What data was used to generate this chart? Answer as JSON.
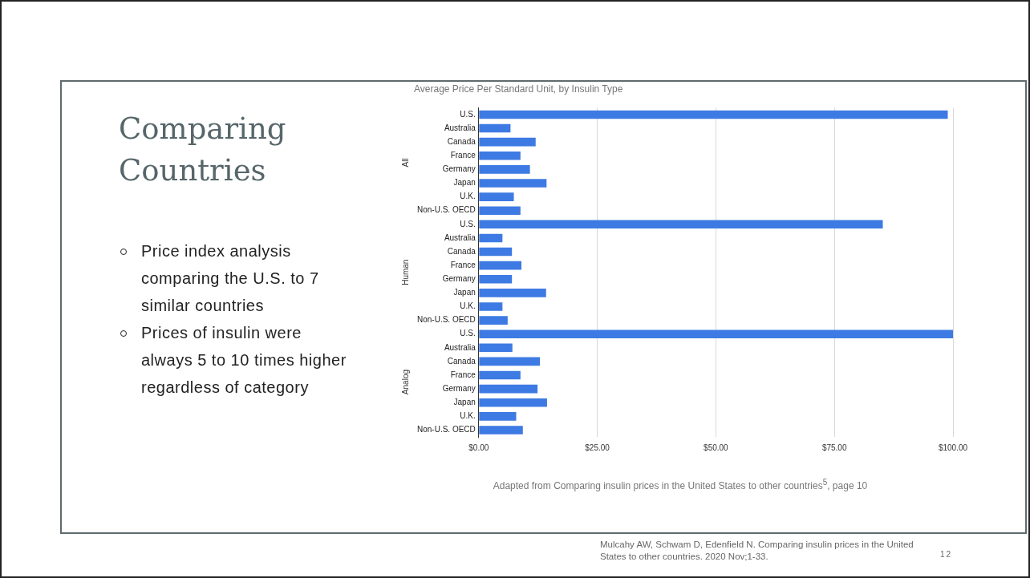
{
  "chart_data": [
    {
      "type": "bar",
      "orientation": "horizontal",
      "title": "Average Price Per Standard Unit, by Insulin Type",
      "categories": [
        "U.S.",
        "Australia",
        "Canada",
        "France",
        "Germany",
        "Japan",
        "U.K.",
        "Non-U.S. OECD",
        "U.S.",
        "Australia",
        "Canada",
        "France",
        "Germany",
        "Japan",
        "U.K.",
        "Non-U.S. OECD",
        "U.S.",
        "Australia",
        "Canada",
        "France",
        "Germany",
        "Japan",
        "U.K.",
        "Non-U.S. OECD"
      ],
      "values": [
        98.9,
        6.7,
        12.0,
        8.8,
        10.8,
        14.3,
        7.4,
        8.8,
        85.2,
        5.0,
        7.0,
        9.0,
        7.0,
        14.2,
        5.0,
        6.1,
        100,
        7.1,
        12.9,
        8.8,
        12.4,
        14.4,
        7.9,
        9.3
      ],
      "color": "#3d7ae3",
      "xlim": [
        0,
        100
      ],
      "xticks": [
        {
          "value": 0,
          "label": "$0.00"
        },
        {
          "value": 25,
          "label": "$25.00"
        },
        {
          "value": 50,
          "label": "$50.00"
        },
        {
          "value": 75,
          "label": "$75.00"
        },
        {
          "value": 100,
          "label": "$100.00"
        }
      ],
      "grid": "x",
      "annotations": [
        "All",
        "Human",
        "Analog",
        "Adapted from Comparing insulin prices in the United States to other countries$^{5}$, page 10"
      ]
    },
    {
      "type": "other",
      "title": "Comparing Countries",
      "annotations": [
        "Price index analysis comparing the U.S. to 7 similar countries",
        "Prices of insulin were always 5 to 10 times higher regardless of category",
        "Mulcahy AW, Schwam D, Edenfield N. Comparing insulin prices in the United States to other countries. 2020 Nov;1-33.",
        "12"
      ]
    }
  ]
}
